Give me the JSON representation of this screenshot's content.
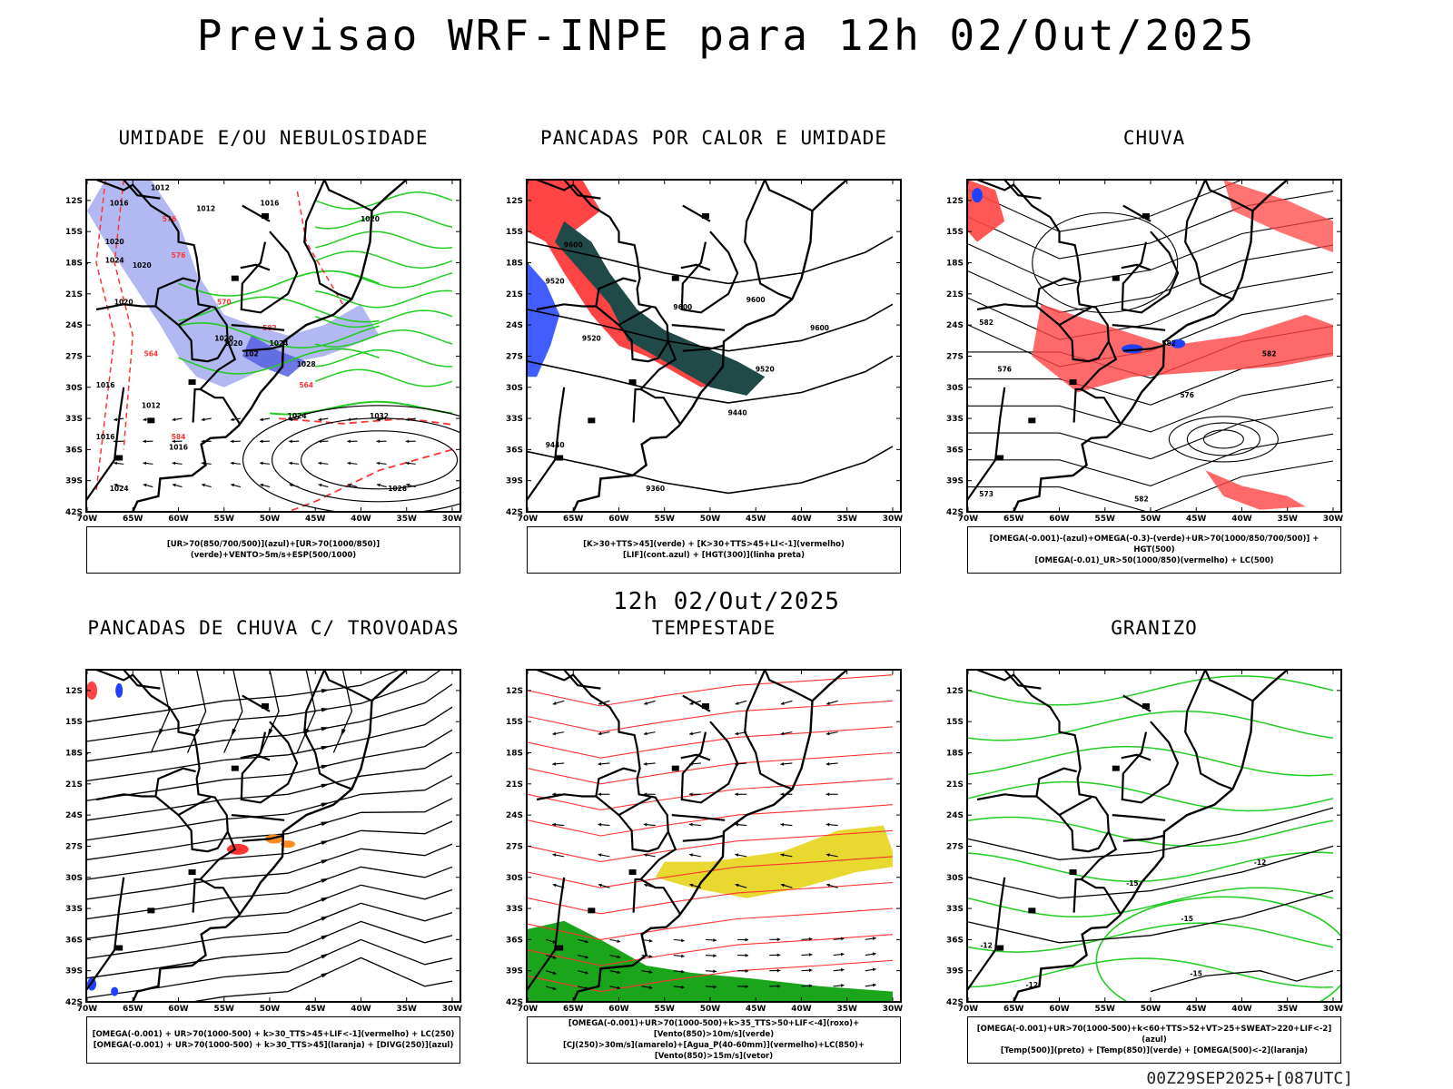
{
  "main_title": "Previsao WRF-INPE  para 12h 02/Out/2025",
  "mid_title": "12h 02/Out/2025",
  "footer_stamp": "00Z29SEP2025+[087UTC]",
  "colors": {
    "blue_fill": "#aab0f0",
    "dark_blue_fill": "#5560e0",
    "green_contour": "#22cc22",
    "red_contour": "#ff3333",
    "red_fill": "#ff4444",
    "dark_teal": "#1f4a48",
    "yellow_fill": "#e8d830",
    "orange_fill": "#ff8c20",
    "green_fill": "#1aa51a",
    "blue_marks": "#2040ff"
  },
  "axes": {
    "lat_labels": [
      "12S",
      "15S",
      "18S",
      "21S",
      "24S",
      "27S",
      "30S",
      "33S",
      "36S",
      "39S",
      "42S"
    ],
    "lon_labels": [
      "70W",
      "65W",
      "60W",
      "55W",
      "50W",
      "45W",
      "40W",
      "35W",
      "30W"
    ]
  },
  "panels": [
    {
      "title": "UMIDADE E/OU NEBULOSIDADE",
      "legend": [
        "[UR>70(850/700/500)](azul)+[UR>70(1000/850)](verde)+VENTO>5m/s+ESP(500/1000)"
      ],
      "labels": [
        "1016",
        "1012",
        "1012",
        "1016",
        "1020",
        "1024",
        "1020",
        "1020",
        "1016",
        "1012",
        "1016",
        "1020",
        "1024",
        "1028",
        "1024",
        "1032",
        "1028",
        "1020",
        "1024",
        "1016",
        "1020",
        "576",
        "576",
        "582",
        "564",
        "570",
        "584",
        "564",
        "102"
      ]
    },
    {
      "title": "PANCADAS POR CALOR E UMIDADE",
      "legend": [
        "[K>30+TTS>45](verde) + [K>30+TTS>45+LI<-1](vermelho)",
        "[LIF](cont.azul) + [HGT(300)](linha preta)"
      ],
      "labels": [
        "9600",
        "9520",
        "9600",
        "9600",
        "9520",
        "9600",
        "9520",
        "9440",
        "9440",
        "9360"
      ]
    },
    {
      "title": "CHUVA",
      "legend": [
        "[OMEGA(-0.001)-(azul)+OMEGA(-0.3)-(verde)+UR>70(1000/850/700/500)] + HGT(500)",
        "[OMEGA(-0.01)_UR>50(1000/850)(vermelho) + LC(500)"
      ],
      "labels": [
        "582",
        "582",
        "576",
        "576",
        "573",
        "582",
        "582"
      ]
    },
    {
      "title": "PANCADAS DE CHUVA C/ TROVOADAS",
      "legend": [
        "[OMEGA(-0.001) + UR>70(1000-500) + k>30_TTS>45+LIF<-1](vermelho) + LC(250)",
        "[OMEGA(-0.001) + UR>70(1000-500) + k>30_TTS>45](laranja) + [DIVG(250)](azul)"
      ],
      "labels": []
    },
    {
      "title": "TEMPESTADE",
      "legend": [
        "[OMEGA(-0.001)+UR>70(1000-500)+k>35_TTS>50+LIF<-4](roxo)+[Vento(850)>10m/s](verde)",
        "[CJ(250)>30m/s](amarelo)+[Agua_P(40-60mm)](vermelho)+LC(850)+[Vento(850)>15m/s](vetor)"
      ],
      "labels": []
    },
    {
      "title": "GRANIZO",
      "legend": [
        "[OMEGA(-0.001)+UR>70(1000-500)+k<60+TTS>52+VT>25+SWEAT>220+LIF<-2](azul)",
        "[Temp(500)](preto) + [Temp(850)](verde) + [OMEGA(500)<-2](laranja)"
      ],
      "labels": [
        "-12",
        "-15",
        "-12",
        "-15",
        "-12",
        "-15"
      ]
    }
  ]
}
